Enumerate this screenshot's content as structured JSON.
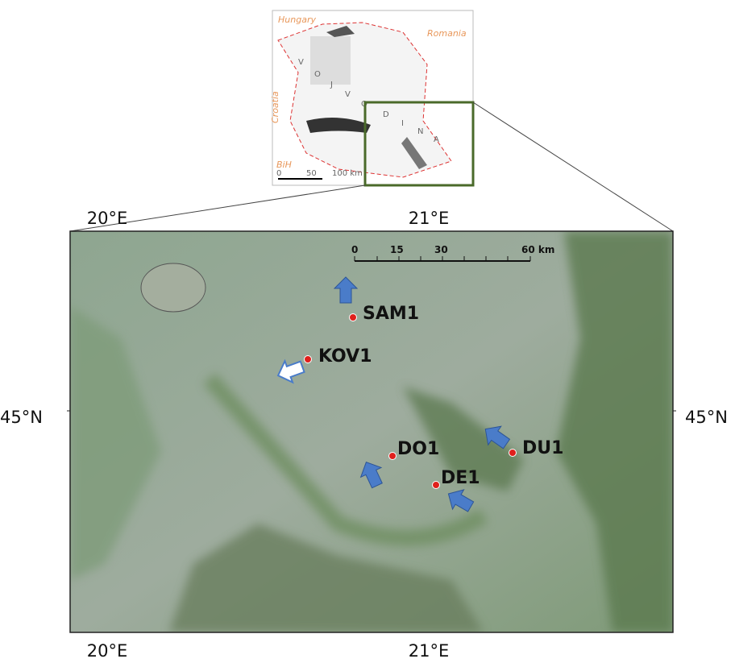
{
  "inset": {
    "countries": [
      "Hungary",
      "Romania",
      "Croatia",
      "BiH"
    ],
    "region_letters": [
      "V",
      "O",
      "J",
      "V",
      "O",
      "D",
      "I",
      "N",
      "A"
    ],
    "scale": [
      "0",
      "50",
      "100 km"
    ]
  },
  "main": {
    "lon_labels_top": [
      "20°E",
      "21°E"
    ],
    "lon_labels_bottom": [
      "20°E",
      "21°E"
    ],
    "lat_labels": [
      "45°N",
      "45°N"
    ],
    "scale_bar": [
      "0",
      "15",
      "30",
      "60 km"
    ],
    "sites": [
      "SAM1",
      "KOV1",
      "DO1",
      "DE1",
      "DU1"
    ]
  }
}
